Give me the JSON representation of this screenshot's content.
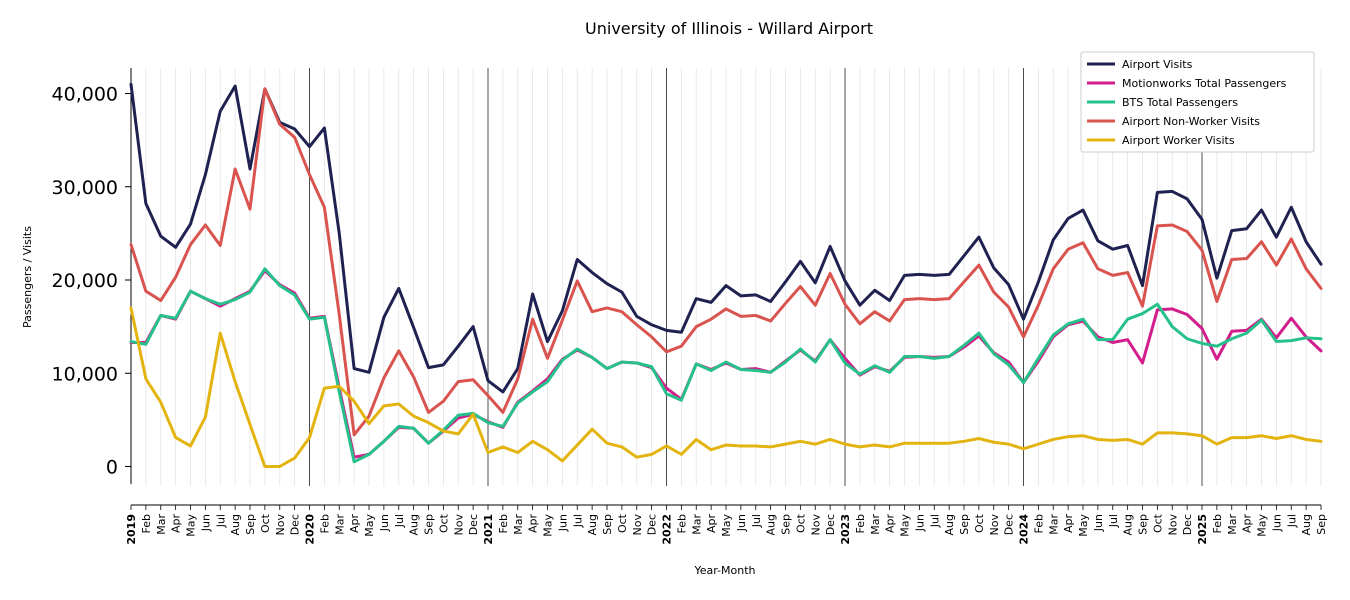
{
  "chart_data": {
    "type": "line",
    "title": "University of Illinois - Willard Airport",
    "xlabel": "Year-Month",
    "ylabel": "Passengers / Visits",
    "ylim": [
      -2000,
      42500
    ],
    "yticks": [
      0,
      10000,
      20000,
      30000,
      40000
    ],
    "ytick_labels": [
      "0",
      "10,000",
      "20,000",
      "30,000",
      "40,000"
    ],
    "grid": "vertical per month, darker at year start",
    "legend_position": "top-right",
    "x": [
      "2019",
      "Feb",
      "Mar",
      "Apr",
      "May",
      "Jun",
      "Jul",
      "Aug",
      "Sep",
      "Oct",
      "Nov",
      "Dec",
      "2020",
      "Feb",
      "Mar",
      "Apr",
      "May",
      "Jun",
      "Jul",
      "Aug",
      "Sep",
      "Oct",
      "Nov",
      "Dec",
      "2021",
      "Feb",
      "Mar",
      "Apr",
      "May",
      "Jun",
      "Jul",
      "Aug",
      "Sep",
      "Oct",
      "Nov",
      "Dec",
      "2022",
      "Feb",
      "Mar",
      "Apr",
      "May",
      "Jun",
      "Jul",
      "Aug",
      "Sep",
      "Oct",
      "Nov",
      "Dec",
      "2023",
      "Feb",
      "Mar",
      "Apr",
      "May",
      "Jun",
      "Jul",
      "Aug",
      "Sep",
      "Oct",
      "Nov",
      "Dec",
      "2024",
      "Feb",
      "Mar",
      "Apr",
      "May",
      "Jun",
      "Jul",
      "Aug",
      "Sep",
      "Oct",
      "Nov",
      "Dec",
      "2025",
      "Feb",
      "Mar",
      "Apr",
      "May",
      "Jun",
      "Jul",
      "Aug",
      "Sep"
    ],
    "series": [
      {
        "name": "Airport Visits",
        "color": "#1f2150",
        "values": [
          41000,
          28200,
          24700,
          23500,
          26000,
          31300,
          38100,
          40800,
          31900,
          40500,
          36900,
          36200,
          34300,
          36300,
          25000,
          10500,
          10100,
          16000,
          19100,
          14900,
          10600,
          10900,
          12900,
          15000,
          9200,
          8000,
          10500,
          18500,
          13400,
          16700,
          22200,
          20800,
          19600,
          18700,
          16100,
          15200,
          14600,
          14400,
          18000,
          17600,
          19400,
          18300,
          18400,
          17700,
          19800,
          22000,
          19700,
          23600,
          19900,
          17300,
          18900,
          17800,
          20500,
          20600,
          20500,
          20600,
          22600,
          24600,
          21300,
          19500,
          15800,
          19800,
          24300,
          26600,
          27500,
          24200,
          23300,
          23700,
          19400,
          29400,
          29500,
          28700,
          26500,
          20200,
          25300,
          25500,
          27500,
          24600,
          27800,
          24100,
          21700
        ]
      },
      {
        "name": "Motionworks Total Passengers",
        "color": "#d31d8c",
        "values": [
          13300,
          13300,
          16200,
          15800,
          18800,
          18000,
          17200,
          18000,
          18800,
          21000,
          19500,
          18600,
          15900,
          16100,
          8400,
          1000,
          1300,
          2700,
          4200,
          4100,
          2500,
          3800,
          5200,
          5600,
          4800,
          4200,
          6900,
          8100,
          9400,
          11500,
          12500,
          11700,
          10500,
          11200,
          11100,
          10600,
          8400,
          7200,
          11000,
          10400,
          11100,
          10400,
          10500,
          10100,
          11300,
          12500,
          11300,
          13600,
          11600,
          9800,
          10700,
          10200,
          11700,
          11800,
          11700,
          11800,
          12800,
          14000,
          12200,
          11200,
          9000,
          11300,
          13900,
          15200,
          15600,
          13900,
          13300,
          13600,
          11100,
          16800,
          16900,
          16300,
          14800,
          11500,
          14500,
          14600,
          15800,
          13800,
          15900,
          13900,
          12400
        ]
      },
      {
        "name": "BTS Total Passengers",
        "color": "#26c08b",
        "values": [
          13400,
          13100,
          16200,
          15900,
          18800,
          18000,
          17400,
          17900,
          18700,
          21200,
          19400,
          18400,
          15800,
          16000,
          8000,
          500,
          1300,
          2700,
          4300,
          4100,
          2500,
          3900,
          5500,
          5700,
          4700,
          4300,
          6800,
          8000,
          9100,
          11400,
          12600,
          11700,
          10500,
          11200,
          11100,
          10700,
          7800,
          7100,
          11000,
          10300,
          11200,
          10400,
          10300,
          10100,
          11200,
          12600,
          11200,
          13600,
          11100,
          9900,
          10800,
          10100,
          11800,
          11800,
          11600,
          11800,
          13000,
          14300,
          12100,
          10900,
          9000,
          11600,
          14100,
          15300,
          15800,
          13600,
          13600,
          15800,
          16400,
          17400,
          15000,
          13700,
          13200,
          12900,
          13700,
          14300,
          15700,
          13400,
          13500,
          13800,
          13700
        ]
      },
      {
        "name": "Airport Non-Worker Visits",
        "color": "#d9534f",
        "values": [
          23800,
          18800,
          17800,
          20300,
          23800,
          25900,
          23700,
          31900,
          27600,
          40500,
          36700,
          35300,
          31300,
          27800,
          16300,
          3400,
          5400,
          9500,
          12400,
          9600,
          5800,
          7000,
          9100,
          9300,
          7600,
          5800,
          9400,
          15800,
          11600,
          15700,
          19900,
          16600,
          17000,
          16600,
          15200,
          13900,
          12300,
          12900,
          15000,
          15800,
          16900,
          16100,
          16200,
          15600,
          17500,
          19300,
          17300,
          20700,
          17400,
          15300,
          16600,
          15600,
          17900,
          18000,
          17900,
          18000,
          19800,
          21600,
          18700,
          17100,
          13900,
          17300,
          21200,
          23300,
          24000,
          21200,
          20500,
          20800,
          17200,
          25800,
          25900,
          25200,
          23200,
          17700,
          22200,
          22300,
          24100,
          21600,
          24400,
          21200,
          19100
        ]
      },
      {
        "name": "Airport Worker Visits",
        "color": "#e3b40f",
        "values": [
          17000,
          9400,
          6900,
          3100,
          2200,
          5300,
          14300,
          9100,
          4500,
          0,
          0,
          900,
          3100,
          8400,
          8600,
          7000,
          4600,
          6500,
          6700,
          5400,
          4700,
          3800,
          3500,
          5600,
          1500,
          2100,
          1500,
          2700,
          1800,
          600,
          2300,
          4000,
          2500,
          2100,
          1000,
          1300,
          2200,
          1300,
          2900,
          1800,
          2300,
          2200,
          2200,
          2100,
          2400,
          2700,
          2400,
          2900,
          2400,
          2100,
          2300,
          2100,
          2500,
          2500,
          2500,
          2500,
          2700,
          3000,
          2600,
          2400,
          1900,
          2400,
          2900,
          3200,
          3300,
          2900,
          2800,
          2900,
          2400,
          3600,
          3600,
          3500,
          3300,
          2400,
          3100,
          3100,
          3300,
          3000,
          3300,
          2900,
          2700
        ]
      }
    ]
  }
}
